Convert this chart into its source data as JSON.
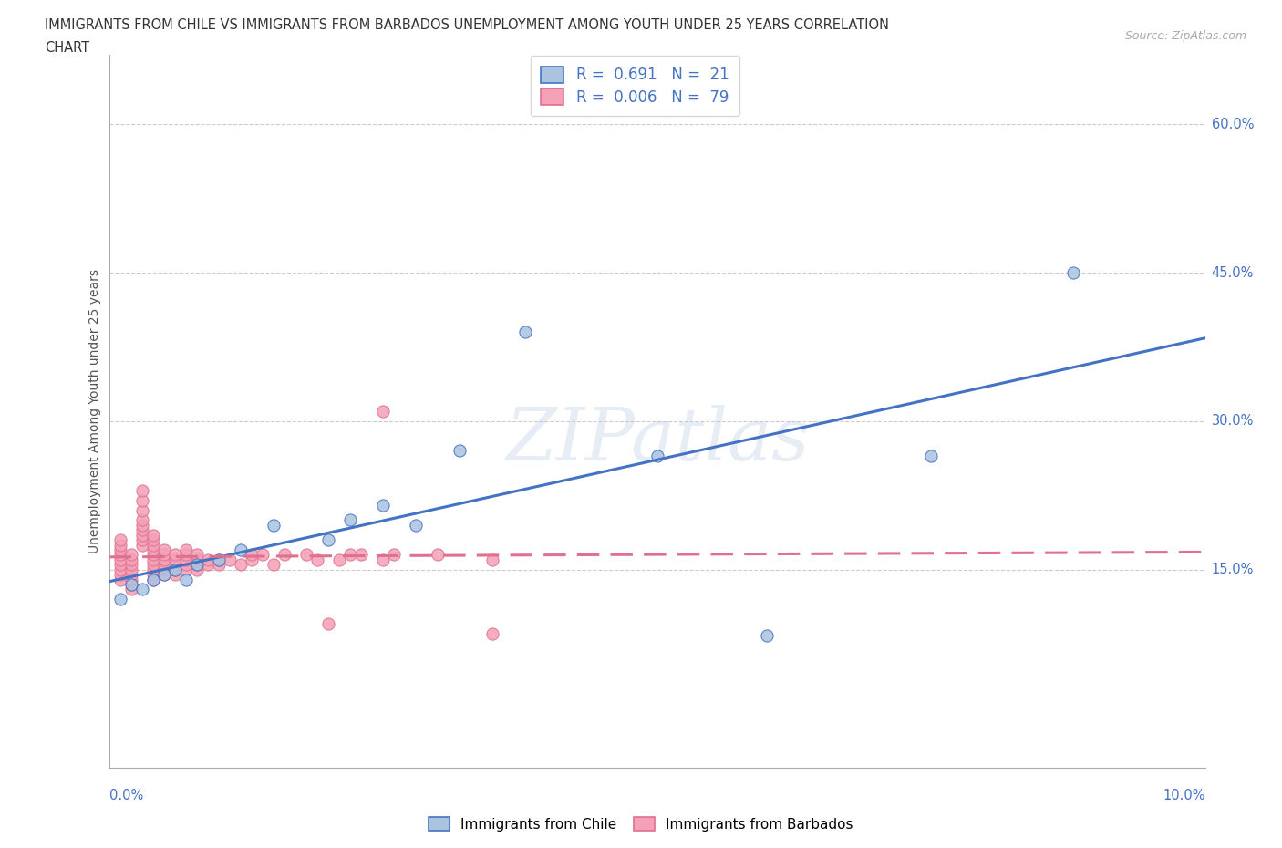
{
  "title_line1": "IMMIGRANTS FROM CHILE VS IMMIGRANTS FROM BARBADOS UNEMPLOYMENT AMONG YOUTH UNDER 25 YEARS CORRELATION",
  "title_line2": "CHART",
  "source_text": "Source: ZipAtlas.com",
  "ylabel": "Unemployment Among Youth under 25 years",
  "xlim": [
    0.0,
    0.1
  ],
  "ylim": [
    -0.05,
    0.67
  ],
  "background_color": "#ffffff",
  "chile_fill_color": "#aac4e0",
  "chile_edge_color": "#4472c4",
  "barbados_fill_color": "#f4a0b5",
  "barbados_edge_color": "#e07090",
  "regression_chile_color": "#4472c4",
  "regression_barbados_color": "#e07090",
  "grid_color": "#cccccc",
  "R_chile": 0.691,
  "N_chile": 21,
  "R_barbados": 0.006,
  "N_barbados": 79,
  "ytick_values": [
    0.15,
    0.3,
    0.45,
    0.6
  ],
  "ytick_labels": [
    "15.0%",
    "30.0%",
    "45.0%",
    "60.0%"
  ],
  "watermark_text": "ZIPatlas",
  "chile_x": [
    0.001,
    0.002,
    0.003,
    0.004,
    0.005,
    0.006,
    0.007,
    0.008,
    0.01,
    0.012,
    0.015,
    0.02,
    0.022,
    0.025,
    0.028,
    0.032,
    0.038,
    0.05,
    0.06,
    0.075,
    0.088
  ],
  "chile_y": [
    0.12,
    0.135,
    0.13,
    0.14,
    0.145,
    0.15,
    0.14,
    0.155,
    0.16,
    0.17,
    0.195,
    0.18,
    0.2,
    0.215,
    0.195,
    0.27,
    0.39,
    0.265,
    0.083,
    0.265,
    0.45
  ],
  "barbados_x": [
    0.001,
    0.001,
    0.001,
    0.001,
    0.001,
    0.001,
    0.001,
    0.001,
    0.001,
    0.002,
    0.002,
    0.002,
    0.002,
    0.002,
    0.002,
    0.002,
    0.002,
    0.003,
    0.003,
    0.003,
    0.003,
    0.003,
    0.003,
    0.003,
    0.003,
    0.003,
    0.004,
    0.004,
    0.004,
    0.004,
    0.004,
    0.004,
    0.004,
    0.004,
    0.004,
    0.004,
    0.005,
    0.005,
    0.005,
    0.005,
    0.005,
    0.005,
    0.006,
    0.006,
    0.006,
    0.006,
    0.006,
    0.007,
    0.007,
    0.007,
    0.007,
    0.007,
    0.008,
    0.008,
    0.008,
    0.008,
    0.009,
    0.009,
    0.01,
    0.01,
    0.011,
    0.012,
    0.013,
    0.013,
    0.014,
    0.015,
    0.016,
    0.018,
    0.019,
    0.021,
    0.022,
    0.023,
    0.025,
    0.026,
    0.03,
    0.035,
    0.025,
    0.02,
    0.035
  ],
  "barbados_y": [
    0.14,
    0.145,
    0.15,
    0.155,
    0.16,
    0.165,
    0.17,
    0.175,
    0.18,
    0.13,
    0.135,
    0.14,
    0.145,
    0.15,
    0.155,
    0.16,
    0.165,
    0.175,
    0.18,
    0.185,
    0.19,
    0.195,
    0.2,
    0.21,
    0.22,
    0.23,
    0.14,
    0.145,
    0.15,
    0.155,
    0.16,
    0.165,
    0.17,
    0.175,
    0.18,
    0.185,
    0.145,
    0.15,
    0.155,
    0.16,
    0.165,
    0.17,
    0.145,
    0.15,
    0.155,
    0.16,
    0.165,
    0.15,
    0.155,
    0.16,
    0.165,
    0.17,
    0.15,
    0.155,
    0.16,
    0.165,
    0.155,
    0.16,
    0.155,
    0.16,
    0.16,
    0.155,
    0.16,
    0.165,
    0.165,
    0.155,
    0.165,
    0.165,
    0.16,
    0.16,
    0.165,
    0.165,
    0.16,
    0.165,
    0.165,
    0.16,
    0.31,
    0.095,
    0.085
  ]
}
